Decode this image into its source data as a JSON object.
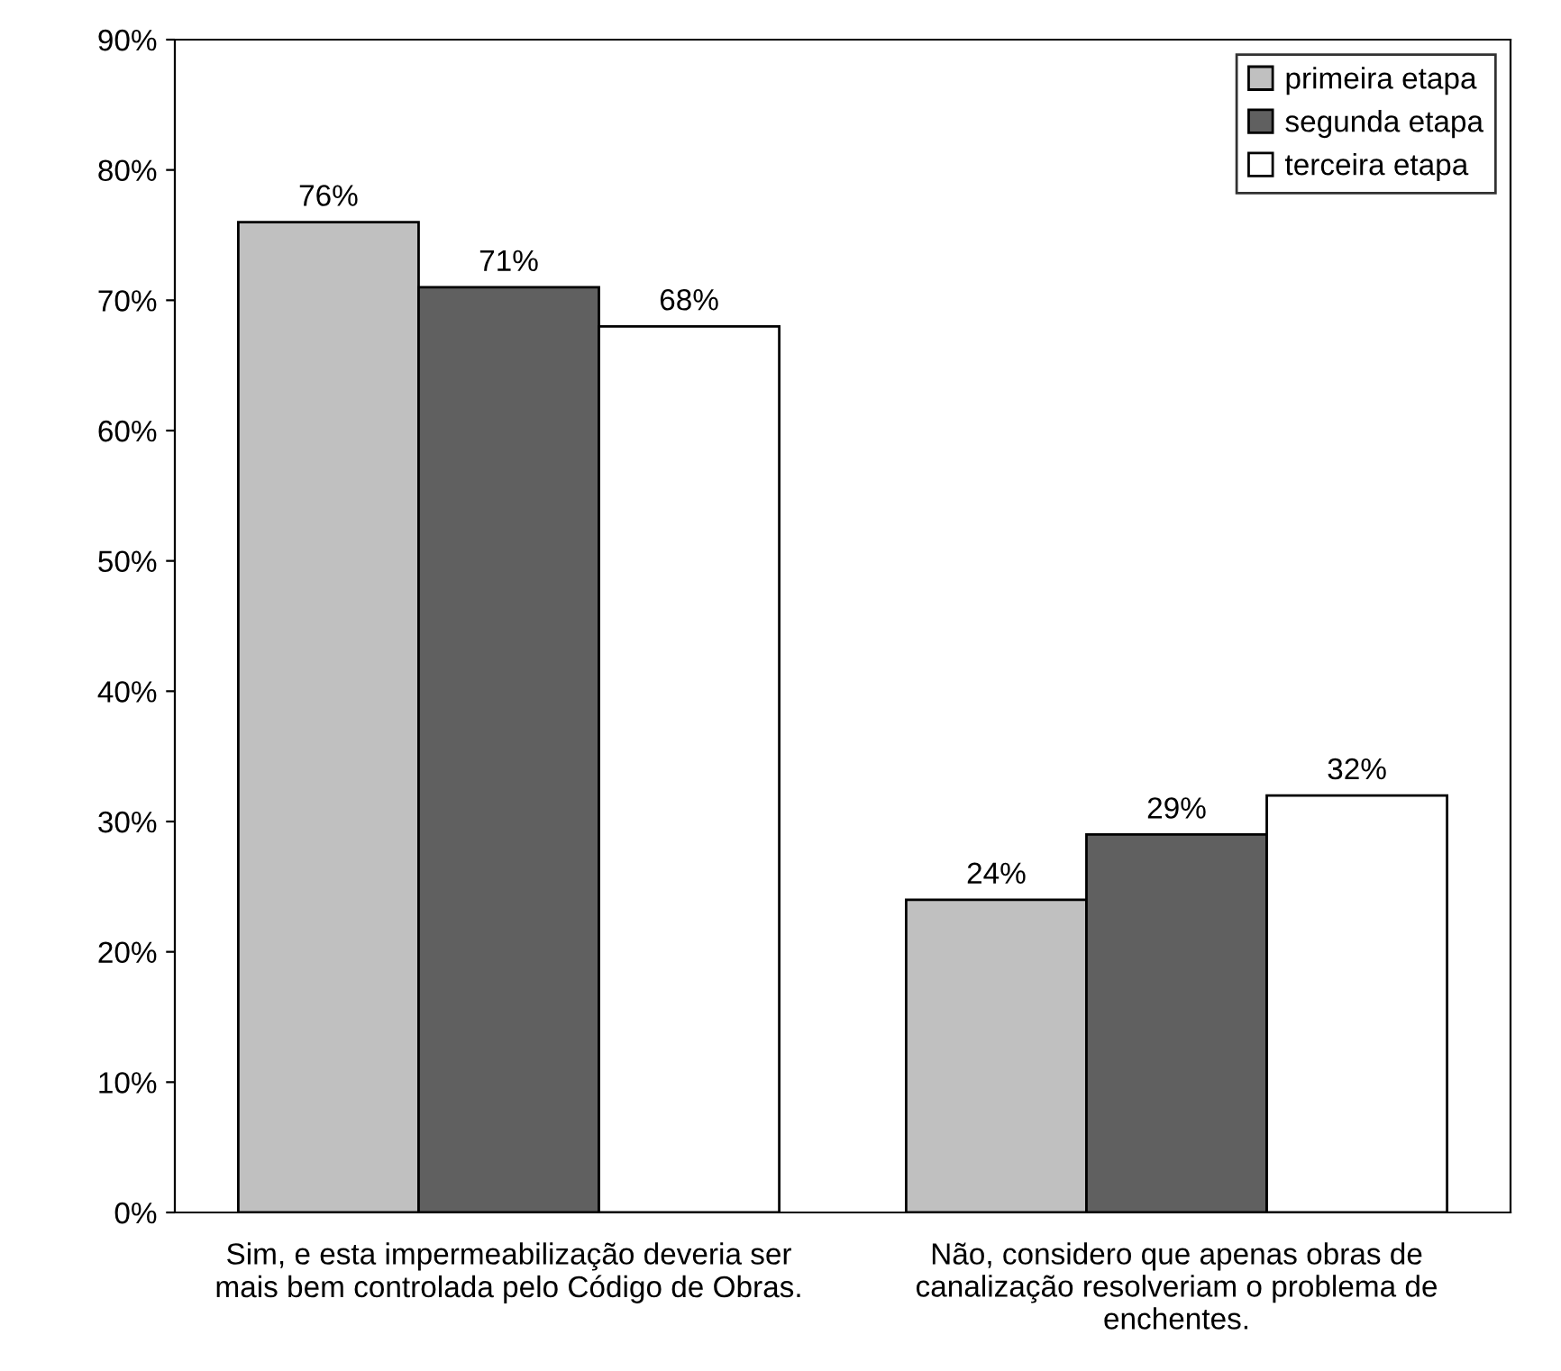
{
  "chart_data": {
    "type": "bar",
    "categories": [
      "Sim, e esta impermeabilização deveria ser\nmais bem controlada pelo Código de Obras.",
      "Não, considero que apenas obras de\ncanalização resolveriam o problema de\nenchentes."
    ],
    "series": [
      {
        "name": "primeira etapa",
        "color": "#c0c0c0",
        "values": [
          76,
          24
        ],
        "value_labels": [
          "76%",
          "24%"
        ]
      },
      {
        "name": "segunda etapa",
        "color": "#606060",
        "values": [
          71,
          29
        ],
        "value_labels": [
          "71%",
          "29%"
        ]
      },
      {
        "name": "terceira etapa",
        "color": "#ffffff",
        "values": [
          68,
          32
        ],
        "value_labels": [
          "68%",
          "32%"
        ]
      }
    ],
    "ylim": [
      0,
      90
    ],
    "yticks": [
      {
        "value": 0,
        "label": "0%"
      },
      {
        "value": 10,
        "label": "10%"
      },
      {
        "value": 20,
        "label": "20%"
      },
      {
        "value": 30,
        "label": "30%"
      },
      {
        "value": 40,
        "label": "40%"
      },
      {
        "value": 50,
        "label": "50%"
      },
      {
        "value": 60,
        "label": "60%"
      },
      {
        "value": 70,
        "label": "70%"
      },
      {
        "value": 80,
        "label": "80%"
      },
      {
        "value": 90,
        "label": "90%"
      }
    ],
    "legend": "top right",
    "grid": false
  }
}
